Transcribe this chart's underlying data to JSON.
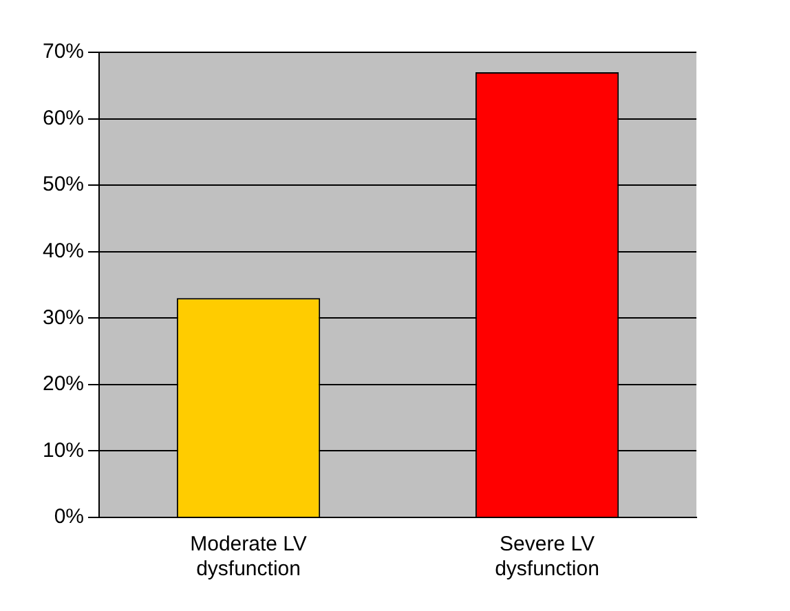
{
  "chart_data": {
    "type": "bar",
    "categories": [
      "Moderate LV dysfunction",
      "Severe LV dysfunction"
    ],
    "values": [
      33,
      67
    ],
    "colors": [
      "#ffcc00",
      "#ff0000"
    ],
    "ylim": [
      0,
      70
    ],
    "yticks": [
      {
        "value": 0,
        "label": "0%"
      },
      {
        "value": 10,
        "label": "10%"
      },
      {
        "value": 20,
        "label": "20%"
      },
      {
        "value": 30,
        "label": "30%"
      },
      {
        "value": 40,
        "label": "40%"
      },
      {
        "value": 50,
        "label": "50%"
      },
      {
        "value": 60,
        "label": "60%"
      },
      {
        "value": 70,
        "label": "70%"
      }
    ],
    "grid": "y",
    "legend": false
  }
}
